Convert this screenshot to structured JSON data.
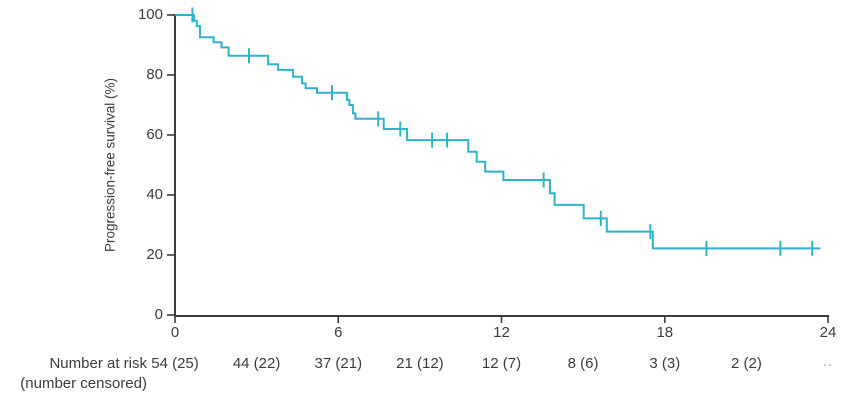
{
  "colors": {
    "curve": "#2eb3cb",
    "axis": "#3c3c3c",
    "text": "#3c3c3c",
    "muted_text": "#a8a8a8"
  },
  "labels": {
    "y_axis_title": "Progression-free survival (%)",
    "y_ticks": [
      "100",
      "80",
      "60",
      "40",
      "20",
      "0"
    ],
    "x_ticks": [
      "0",
      "6",
      "12",
      "18",
      "24"
    ],
    "risk_row_title_line1": "Number at risk",
    "risk_row_title_line2": "(number censored)",
    "risk_values": [
      "54 (25)",
      "44 (22)",
      "37 (21)",
      "21 (12)",
      "12 (7)",
      "8 (6)",
      "3 (3)",
      "2 (2)"
    ],
    "risk_trailing": ".."
  },
  "chart_data": {
    "type": "line",
    "variant": "kaplan_meier_step",
    "title": "",
    "xlabel": "",
    "ylabel": "Progression-free survival (%)",
    "xlim": [
      0,
      24
    ],
    "ylim": [
      0,
      100
    ],
    "x_ticks": [
      0,
      6,
      12,
      18,
      24
    ],
    "y_ticks": [
      0,
      20,
      40,
      60,
      80,
      100
    ],
    "grid": false,
    "legend": false,
    "series": [
      {
        "name": "Progression-free survival",
        "color": "#2eb3cb",
        "step_points": [
          [
            0,
            100
          ],
          [
            0.7,
            98.1
          ],
          [
            0.8,
            96.3
          ],
          [
            0.92,
            92.6
          ],
          [
            1.42,
            90.9
          ],
          [
            1.71,
            89.2
          ],
          [
            1.97,
            86.4
          ],
          [
            3.42,
            83.6
          ],
          [
            3.79,
            81.7
          ],
          [
            4.34,
            79.4
          ],
          [
            4.67,
            77.2
          ],
          [
            4.8,
            75.6
          ],
          [
            5.22,
            74.1
          ],
          [
            6.32,
            71.7
          ],
          [
            6.41,
            70.0
          ],
          [
            6.54,
            67.2
          ],
          [
            6.63,
            65.4
          ],
          [
            7.67,
            62.0
          ],
          [
            8.53,
            58.3
          ],
          [
            10.78,
            54.4
          ],
          [
            11.09,
            51.1
          ],
          [
            11.4,
            47.8
          ],
          [
            12.07,
            45.0
          ],
          [
            13.78,
            40.6
          ],
          [
            13.95,
            36.7
          ],
          [
            15.02,
            32.2
          ],
          [
            15.87,
            27.8
          ],
          [
            17.56,
            22.2
          ]
        ],
        "curve_end_time": 23.72,
        "censor_marks": [
          [
            0.64,
            100
          ],
          [
            2.72,
            86.4
          ],
          [
            5.77,
            74.1
          ],
          [
            7.47,
            65.4
          ],
          [
            8.28,
            62.0
          ],
          [
            9.45,
            58.3
          ],
          [
            10.0,
            58.3
          ],
          [
            13.55,
            45.0
          ],
          [
            15.65,
            32.2
          ],
          [
            17.47,
            27.8
          ],
          [
            19.53,
            22.2
          ],
          [
            22.25,
            22.2
          ],
          [
            23.42,
            22.2
          ]
        ]
      }
    ],
    "number_at_risk": {
      "times": [
        0,
        3,
        6,
        9,
        12,
        15,
        18,
        21,
        24
      ],
      "labels": [
        "54 (25)",
        "44 (22)",
        "37 (21)",
        "21 (12)",
        "12 (7)",
        "8 (6)",
        "3 (3)",
        "2 (2)",
        ".."
      ]
    }
  }
}
